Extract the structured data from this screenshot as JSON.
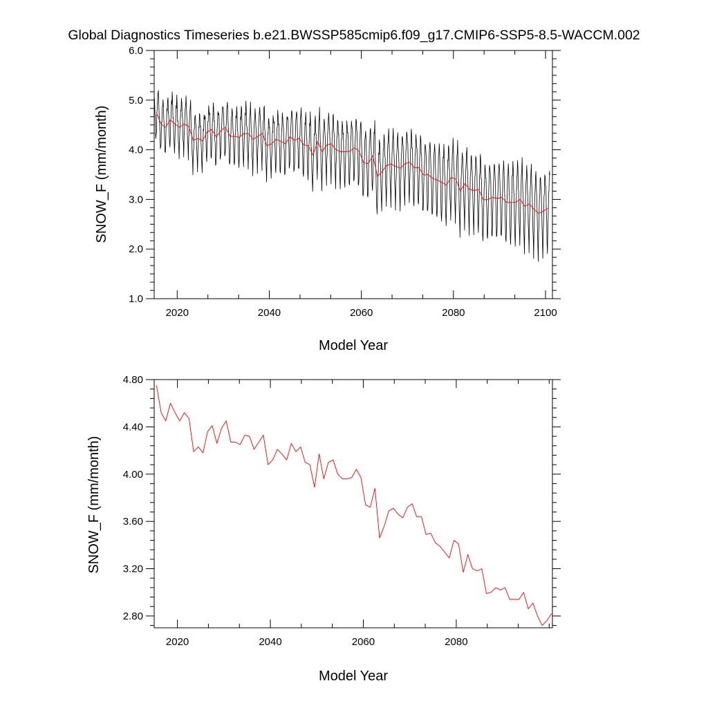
{
  "title": "Global Diagnostics Timeseries b.e21.BWSSP585cmip6.f09_g17.CMIP6-SSP5-8.5-WACCM.002",
  "colors": {
    "monthly": "#000000",
    "annual": "#ff0000",
    "axes": "#000000",
    "background": "#ffffff"
  },
  "chart_data": [
    {
      "type": "line",
      "xlabel": "Model Year",
      "ylabel": "SNOW_F (mm/month)",
      "xlim": [
        2015,
        2101.5
      ],
      "ylim": [
        1.0,
        6.0
      ],
      "xticks": [
        "2020",
        "2040",
        "2060",
        "2080",
        "2100"
      ],
      "yticks": [
        "1.0",
        "2.0",
        "3.0",
        "4.0",
        "5.0",
        "6.0"
      ],
      "series": [
        {
          "style": "monthly",
          "x": [
            2015.0,
            2016.0,
            2017.0,
            2018.0,
            2019.0,
            2020.0,
            2021.0,
            2022.0,
            2023.0,
            2024.0,
            2025.0,
            2026.0,
            2027.0,
            2028.0,
            2029.0,
            2030.0,
            2031.0,
            2032.0,
            2033.0,
            2034.0,
            2035.0,
            2036.0,
            2037.0,
            2038.0,
            2039.0,
            2040.0,
            2041.0,
            2042.0,
            2043.0,
            2044.0,
            2045.0,
            2046.0,
            2047.0,
            2048.0,
            2049.0,
            2050.0,
            2051.0,
            2052.0,
            2053.0,
            2054.0,
            2055.0,
            2056.0,
            2057.0,
            2058.0,
            2059.0,
            2060.0,
            2061.0,
            2062.0,
            2063.0,
            2064.0,
            2065.0,
            2066.0,
            2067.0,
            2068.0,
            2069.0,
            2070.0,
            2071.0,
            2072.0,
            2073.0,
            2074.0,
            2075.0,
            2076.0,
            2077.0,
            2078.0,
            2079.0,
            2080.0,
            2081.0,
            2082.0,
            2083.0,
            2084.0,
            2085.0,
            2086.0,
            2087.0,
            2088.0,
            2089.0,
            2090.0,
            2091.0,
            2092.0,
            2093.0,
            2094.0,
            2095.0,
            2096.0,
            2097.0,
            2098.0,
            2099.0,
            2100.0
          ],
          "mean": [
            4.75,
            4.52,
            4.45,
            4.6,
            4.52,
            4.45,
            4.52,
            4.47,
            4.19,
            4.23,
            4.18,
            4.36,
            4.41,
            4.26,
            4.39,
            4.45,
            4.27,
            4.27,
            4.25,
            4.33,
            4.32,
            4.21,
            4.27,
            4.33,
            4.08,
            4.12,
            4.21,
            4.17,
            4.12,
            4.26,
            4.19,
            4.23,
            4.1,
            4.08,
            3.89,
            4.17,
            3.96,
            4.1,
            4.12,
            4.0,
            3.96,
            3.96,
            3.97,
            4.04,
            3.97,
            3.74,
            3.72,
            3.88,
            3.46,
            3.56,
            3.69,
            3.71,
            3.66,
            3.63,
            3.72,
            3.75,
            3.64,
            3.64,
            3.49,
            3.5,
            3.42,
            3.39,
            3.34,
            3.29,
            3.44,
            3.41,
            3.17,
            3.32,
            3.2,
            3.18,
            3.2,
            2.99,
            3.0,
            3.04,
            3.02,
            3.04,
            2.94,
            2.94,
            2.94,
            3.0,
            2.86,
            2.91,
            2.8,
            2.72,
            2.76,
            2.82
          ],
          "amplitude": [
            0.55,
            0.55,
            0.57,
            0.57,
            0.57,
            0.58,
            0.58,
            0.58,
            0.6,
            0.6,
            0.6,
            0.6,
            0.62,
            0.62,
            0.62,
            0.62,
            0.63,
            0.63,
            0.63,
            0.65,
            0.65,
            0.65,
            0.65,
            0.66,
            0.66,
            0.66,
            0.68,
            0.68,
            0.68,
            0.68,
            0.69,
            0.69,
            0.69,
            0.7,
            0.7,
            0.7,
            0.7,
            0.72,
            0.72,
            0.72,
            0.72,
            0.73,
            0.73,
            0.73,
            0.75,
            0.75,
            0.75,
            0.75,
            0.76,
            0.76,
            0.76,
            0.78,
            0.78,
            0.78,
            0.78,
            0.79,
            0.79,
            0.79,
            0.79,
            0.81,
            0.81,
            0.81,
            0.82,
            0.82,
            0.82,
            0.82,
            0.84,
            0.84,
            0.84,
            0.84,
            0.85,
            0.85,
            0.85,
            0.86,
            0.86,
            0.86,
            0.86,
            0.88,
            0.88,
            0.88,
            0.88,
            0.89,
            0.89,
            0.89,
            0.9,
            0.9
          ]
        },
        {
          "style": "annual",
          "x": [
            2015.5,
            2016.5,
            2017.5,
            2018.5,
            2019.5,
            2020.5,
            2021.5,
            2022.5,
            2023.5,
            2024.5,
            2025.5,
            2026.5,
            2027.5,
            2028.5,
            2029.5,
            2030.5,
            2031.5,
            2032.5,
            2033.5,
            2034.5,
            2035.5,
            2036.5,
            2037.5,
            2038.5,
            2039.5,
            2040.5,
            2041.5,
            2042.5,
            2043.5,
            2044.5,
            2045.5,
            2046.5,
            2047.5,
            2048.5,
            2049.5,
            2050.5,
            2051.5,
            2052.5,
            2053.5,
            2054.5,
            2055.5,
            2056.5,
            2057.5,
            2058.5,
            2059.5,
            2060.5,
            2061.5,
            2062.5,
            2063.5,
            2064.5,
            2065.5,
            2066.5,
            2067.5,
            2068.5,
            2069.5,
            2070.5,
            2071.5,
            2072.5,
            2073.5,
            2074.5,
            2075.5,
            2076.5,
            2077.5,
            2078.5,
            2079.5,
            2080.5,
            2081.5,
            2082.5,
            2083.5,
            2084.5,
            2085.5,
            2086.5,
            2087.5,
            2088.5,
            2089.5,
            2090.5,
            2091.5,
            2092.5,
            2093.5,
            2094.5,
            2095.5,
            2096.5,
            2097.5,
            2098.5,
            2099.5,
            2100.5
          ],
          "y": [
            4.75,
            4.52,
            4.45,
            4.6,
            4.52,
            4.45,
            4.52,
            4.47,
            4.19,
            4.23,
            4.18,
            4.36,
            4.41,
            4.26,
            4.39,
            4.45,
            4.27,
            4.27,
            4.25,
            4.33,
            4.32,
            4.21,
            4.27,
            4.33,
            4.08,
            4.12,
            4.21,
            4.17,
            4.12,
            4.26,
            4.19,
            4.23,
            4.1,
            4.08,
            3.89,
            4.17,
            3.96,
            4.1,
            4.12,
            4.0,
            3.96,
            3.96,
            3.97,
            4.04,
            3.97,
            3.74,
            3.72,
            3.88,
            3.46,
            3.56,
            3.69,
            3.71,
            3.66,
            3.63,
            3.72,
            3.75,
            3.64,
            3.64,
            3.49,
            3.5,
            3.42,
            3.39,
            3.34,
            3.29,
            3.44,
            3.41,
            3.17,
            3.32,
            3.2,
            3.18,
            3.2,
            2.99,
            3.0,
            3.04,
            3.02,
            3.04,
            2.94,
            2.94,
            2.94,
            3.0,
            2.86,
            2.91,
            2.8,
            2.72,
            2.76,
            2.82
          ]
        }
      ]
    },
    {
      "type": "line",
      "xlabel": "Model Year",
      "ylabel": "SNOW_F (mm/month)",
      "xlim": [
        2015,
        2100.7
      ],
      "ylim": [
        2.7,
        4.8
      ],
      "xticks": [
        "2020",
        "2040",
        "2060",
        "2080"
      ],
      "yticks": [
        "2.80",
        "3.20",
        "3.60",
        "4.00",
        "4.40",
        "4.80"
      ],
      "series": [
        {
          "style": "annual",
          "x": [
            2015.5,
            2016.5,
            2017.5,
            2018.5,
            2019.5,
            2020.5,
            2021.5,
            2022.5,
            2023.5,
            2024.5,
            2025.5,
            2026.5,
            2027.5,
            2028.5,
            2029.5,
            2030.5,
            2031.5,
            2032.5,
            2033.5,
            2034.5,
            2035.5,
            2036.5,
            2037.5,
            2038.5,
            2039.5,
            2040.5,
            2041.5,
            2042.5,
            2043.5,
            2044.5,
            2045.5,
            2046.5,
            2047.5,
            2048.5,
            2049.5,
            2050.5,
            2051.5,
            2052.5,
            2053.5,
            2054.5,
            2055.5,
            2056.5,
            2057.5,
            2058.5,
            2059.5,
            2060.5,
            2061.5,
            2062.5,
            2063.5,
            2064.5,
            2065.5,
            2066.5,
            2067.5,
            2068.5,
            2069.5,
            2070.5,
            2071.5,
            2072.5,
            2073.5,
            2074.5,
            2075.5,
            2076.5,
            2077.5,
            2078.5,
            2079.5,
            2080.5,
            2081.5,
            2082.5,
            2083.5,
            2084.5,
            2085.5,
            2086.5,
            2087.5,
            2088.5,
            2089.5,
            2090.5,
            2091.5,
            2092.5,
            2093.5,
            2094.5,
            2095.5,
            2096.5,
            2097.5,
            2098.5,
            2099.5,
            2100.5
          ],
          "y": [
            4.75,
            4.52,
            4.45,
            4.6,
            4.52,
            4.45,
            4.52,
            4.47,
            4.19,
            4.23,
            4.18,
            4.36,
            4.41,
            4.26,
            4.39,
            4.45,
            4.27,
            4.27,
            4.25,
            4.33,
            4.32,
            4.21,
            4.27,
            4.33,
            4.08,
            4.12,
            4.21,
            4.17,
            4.12,
            4.26,
            4.19,
            4.23,
            4.1,
            4.08,
            3.89,
            4.17,
            3.96,
            4.1,
            4.12,
            4.0,
            3.96,
            3.96,
            3.97,
            4.04,
            3.97,
            3.74,
            3.72,
            3.88,
            3.46,
            3.56,
            3.69,
            3.71,
            3.66,
            3.63,
            3.72,
            3.75,
            3.64,
            3.64,
            3.49,
            3.5,
            3.42,
            3.39,
            3.34,
            3.29,
            3.44,
            3.41,
            3.17,
            3.32,
            3.2,
            3.18,
            3.2,
            2.99,
            3.0,
            3.04,
            3.02,
            3.04,
            2.94,
            2.94,
            2.94,
            3.0,
            2.86,
            2.91,
            2.8,
            2.72,
            2.76,
            2.82
          ]
        }
      ]
    }
  ]
}
